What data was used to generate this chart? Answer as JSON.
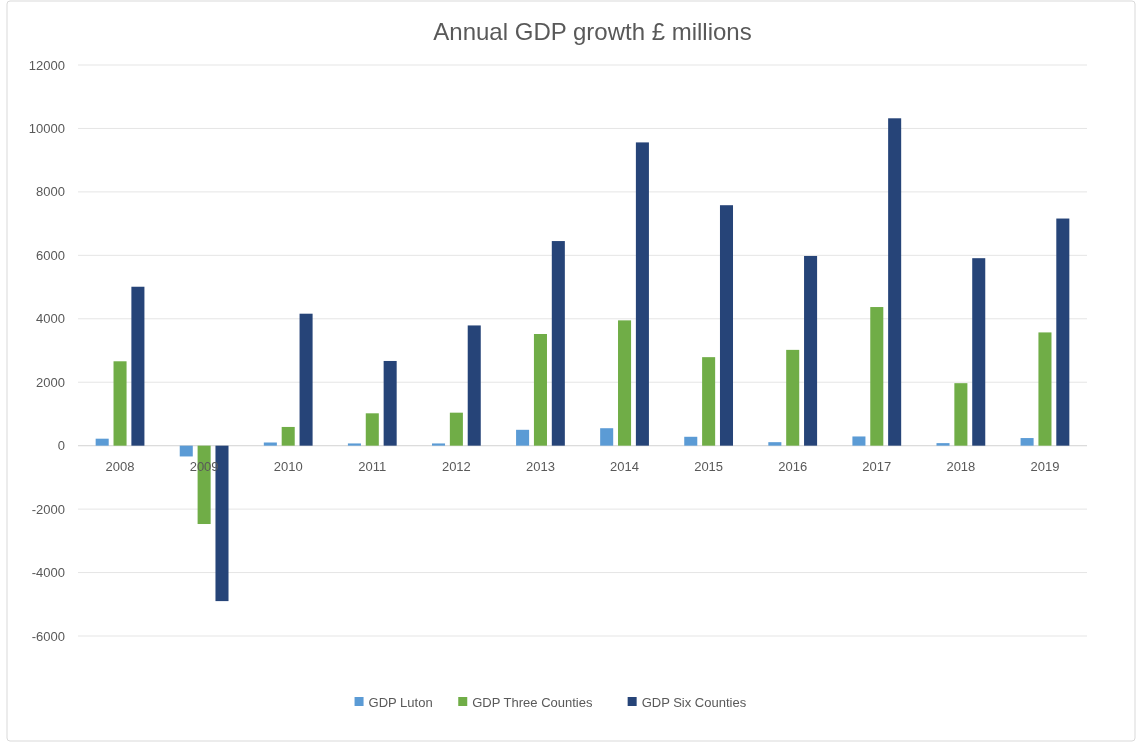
{
  "chart_data": {
    "type": "bar",
    "title": "Annual GDP growth £ millions",
    "categories": [
      "2008",
      "2009",
      "2010",
      "2011",
      "2012",
      "2013",
      "2014",
      "2015",
      "2016",
      "2017",
      "2018",
      "2019"
    ],
    "series": [
      {
        "name": "GDP Luton",
        "color": "#5b9bd5",
        "values": [
          220,
          -340,
          100,
          70,
          70,
          500,
          550,
          280,
          110,
          290,
          80,
          240
        ]
      },
      {
        "name": "GDP Three Counties",
        "color": "#70ad47",
        "values": [
          2660,
          -2470,
          590,
          1020,
          1040,
          3520,
          3950,
          2790,
          3020,
          4370,
          1970,
          3570
        ]
      },
      {
        "name": "GDP Six Counties",
        "color": "#264478",
        "values": [
          5010,
          -4900,
          4160,
          2670,
          3790,
          6450,
          9560,
          7580,
          5980,
          10320,
          5910,
          7160
        ]
      }
    ],
    "ylim": [
      -6000,
      12000
    ],
    "yticks": [
      -6000,
      -4000,
      -2000,
      0,
      2000,
      4000,
      6000,
      8000,
      10000,
      12000
    ],
    "grid": "y",
    "legend": "bottom"
  }
}
